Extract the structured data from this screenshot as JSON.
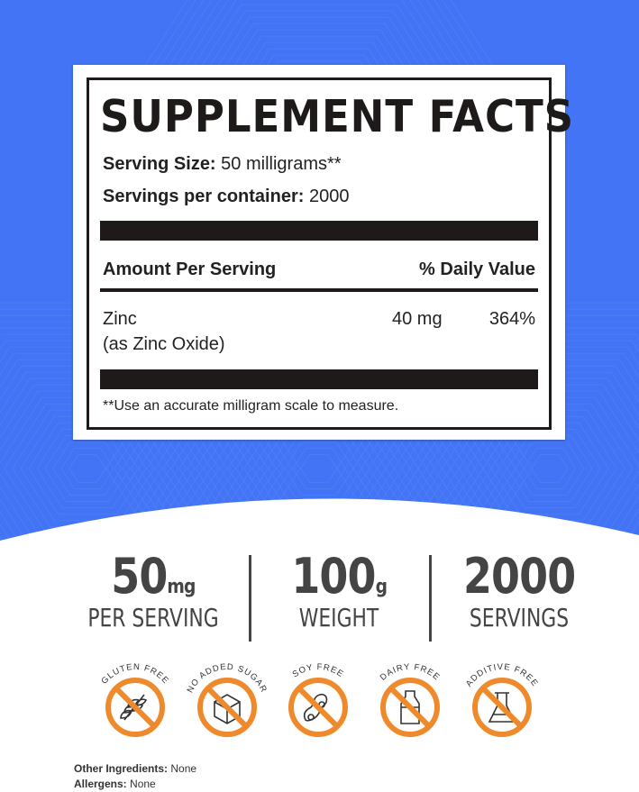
{
  "colors": {
    "background_blue": "#4274f5",
    "icon_orange": "#ef8a2c",
    "text_dark": "#1e1a1a"
  },
  "label": {
    "title": "SUPPLEMENT FACTS",
    "serving_size_label": "Serving Size:",
    "serving_size_value": "50 milligrams**",
    "servings_label": "Servings per container:",
    "servings_value": "2000",
    "header_left": "Amount Per Serving",
    "header_right": "% Daily Value",
    "nutrient": {
      "name": "Zinc",
      "form": "(as Zinc Oxide)",
      "amount": "40 mg",
      "dv": "364%"
    },
    "footnote": "**Use an accurate milligram scale to measure."
  },
  "stats": [
    {
      "value": "50",
      "unit": "mg",
      "caption": "PER SERVING"
    },
    {
      "value": "100",
      "unit": "g",
      "caption": "WEIGHT"
    },
    {
      "value": "2000",
      "unit": "",
      "caption": "SERVINGS"
    }
  ],
  "badges": [
    {
      "label": "GLUTEN FREE",
      "icon": "wheat-icon"
    },
    {
      "label": "NO ADDED SUGAR",
      "icon": "sugar-cube-icon"
    },
    {
      "label": "SOY FREE",
      "icon": "soybean-icon"
    },
    {
      "label": "DAIRY FREE",
      "icon": "milk-bottle-icon"
    },
    {
      "label": "ADDITIVE FREE",
      "icon": "flask-icon"
    }
  ],
  "other_ingredients": {
    "label": "Other Ingredients:",
    "value": "None"
  },
  "allergens": {
    "label": "Allergens:",
    "value": "None"
  }
}
